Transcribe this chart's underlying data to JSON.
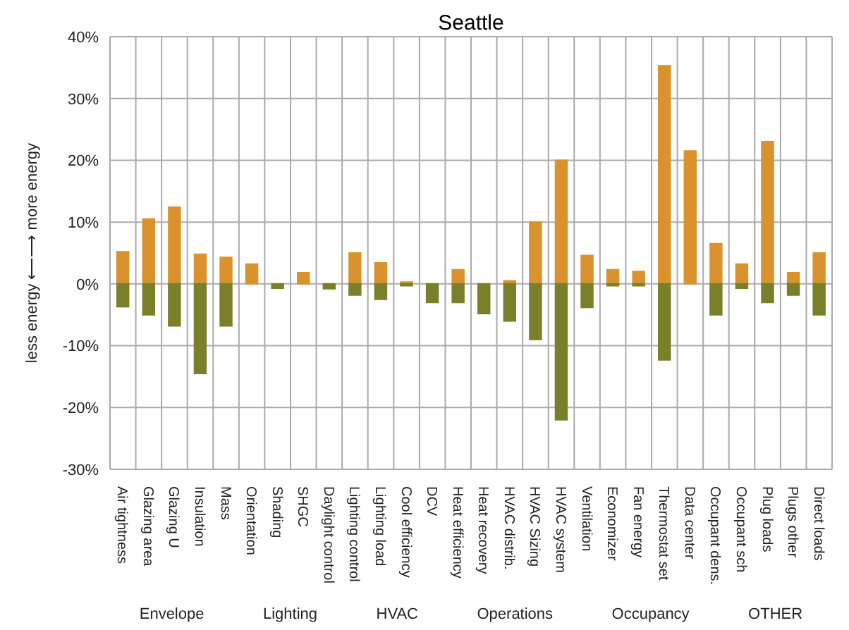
{
  "chart_data": {
    "type": "bar",
    "title": "Seattle",
    "ylabel": "less energy ⟵⟶ more energy",
    "stacked": true,
    "grid": true,
    "legend": false,
    "categories": [
      "Air tightness",
      "Glazing area",
      "Glazing U",
      "Insulation",
      "Mass",
      "Orientation",
      "Shading",
      "SHGC",
      "Daylight control",
      "Lighting control",
      "Lighting load",
      "Cool efficiency",
      "DCV",
      "Heat efficiency",
      "Heat recovery",
      "HVAC distrib.",
      "HVAC Sizing",
      "HVAC system",
      "Ventilation",
      "Economizer",
      "Fan energy",
      "Thermostat set",
      "Data center",
      "Occupant dens.",
      "Occupant sch",
      "Plug loads",
      "Plugs other",
      "Direct loads"
    ],
    "series": [
      {
        "color": "#d9922e",
        "values": [
          5.2,
          10.5,
          12.4,
          4.8,
          4.3,
          3.2,
          0,
          1.8,
          0,
          5,
          3.4,
          0.3,
          0,
          2.3,
          0,
          0.5,
          10,
          20,
          4.6,
          2.3,
          2,
          35.3,
          21.5,
          6.5,
          3.2,
          23,
          1.8,
          5
        ]
      },
      {
        "color": "#7b7f2a",
        "values": [
          -3.7,
          -5,
          -6.8,
          -14.5,
          -6.8,
          0,
          -0.7,
          0,
          -0.8,
          -1.8,
          -2.5,
          -0.3,
          -3,
          -3,
          -4.8,
          -6,
          -9,
          -22,
          -3.8,
          -0.3,
          -0.3,
          -12.3,
          0,
          -5,
          -0.7,
          -3,
          -1.8,
          -5
        ]
      }
    ],
    "ylim": [
      -30,
      40
    ],
    "yticks": [
      {
        "value": -30,
        "label": "-30%"
      },
      {
        "value": -20,
        "label": "-20%"
      },
      {
        "value": -10,
        "label": "-10%"
      },
      {
        "value": 0,
        "label": "0%"
      },
      {
        "value": 10,
        "label": "10%"
      },
      {
        "value": 20,
        "label": "20%"
      },
      {
        "value": 30,
        "label": "30%"
      },
      {
        "value": 40,
        "label": "40%"
      }
    ],
    "annotations": [
      "Envelope",
      "Lighting",
      "HVAC",
      "Operations",
      "Occupancy",
      "OTHER"
    ]
  }
}
